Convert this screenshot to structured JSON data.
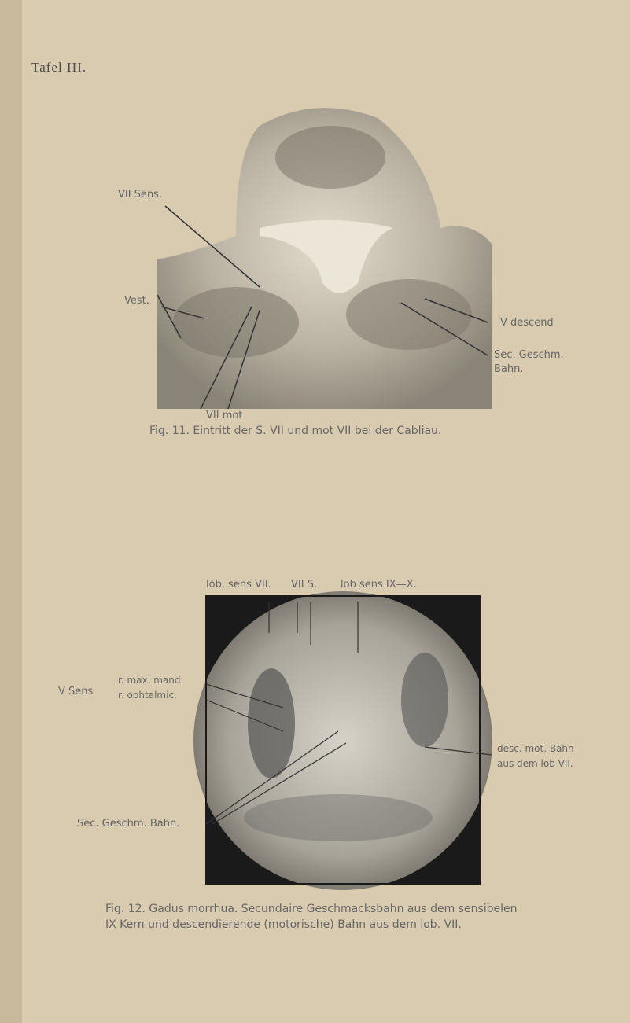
{
  "plate": {
    "title": "Tafel III."
  },
  "figure_11": {
    "labels": {
      "vii_sens": "VII Sens.",
      "vest": "Vest.",
      "v_descend": "V descend",
      "sec_geschm": "Sec. Geschm.",
      "bahn": "Bahn.",
      "vii_mot": "VII mot"
    },
    "caption": "Fig. 11. Eintritt der S. VII und mot VII bei der Cabliau."
  },
  "figure_12": {
    "top_labels": [
      "lob. sens VII.",
      "VII S.",
      "lob sens IX—X."
    ],
    "v_sens": "V Sens",
    "v_sens_branches": [
      "r. max. mand",
      "r. ophtalmic."
    ],
    "sec_geschm_bahn": "Sec. Geschm. Bahn.",
    "desc_mot": [
      "desc. mot. Bahn",
      "aus dem lob VII."
    ],
    "caption": [
      "Fig. 12. Gadus morrhua. Secundaire Geschmacksbahn aus dem sensibelen",
      "IX Kern und descendierende (motorische) Bahn aus dem lob. VII."
    ]
  }
}
